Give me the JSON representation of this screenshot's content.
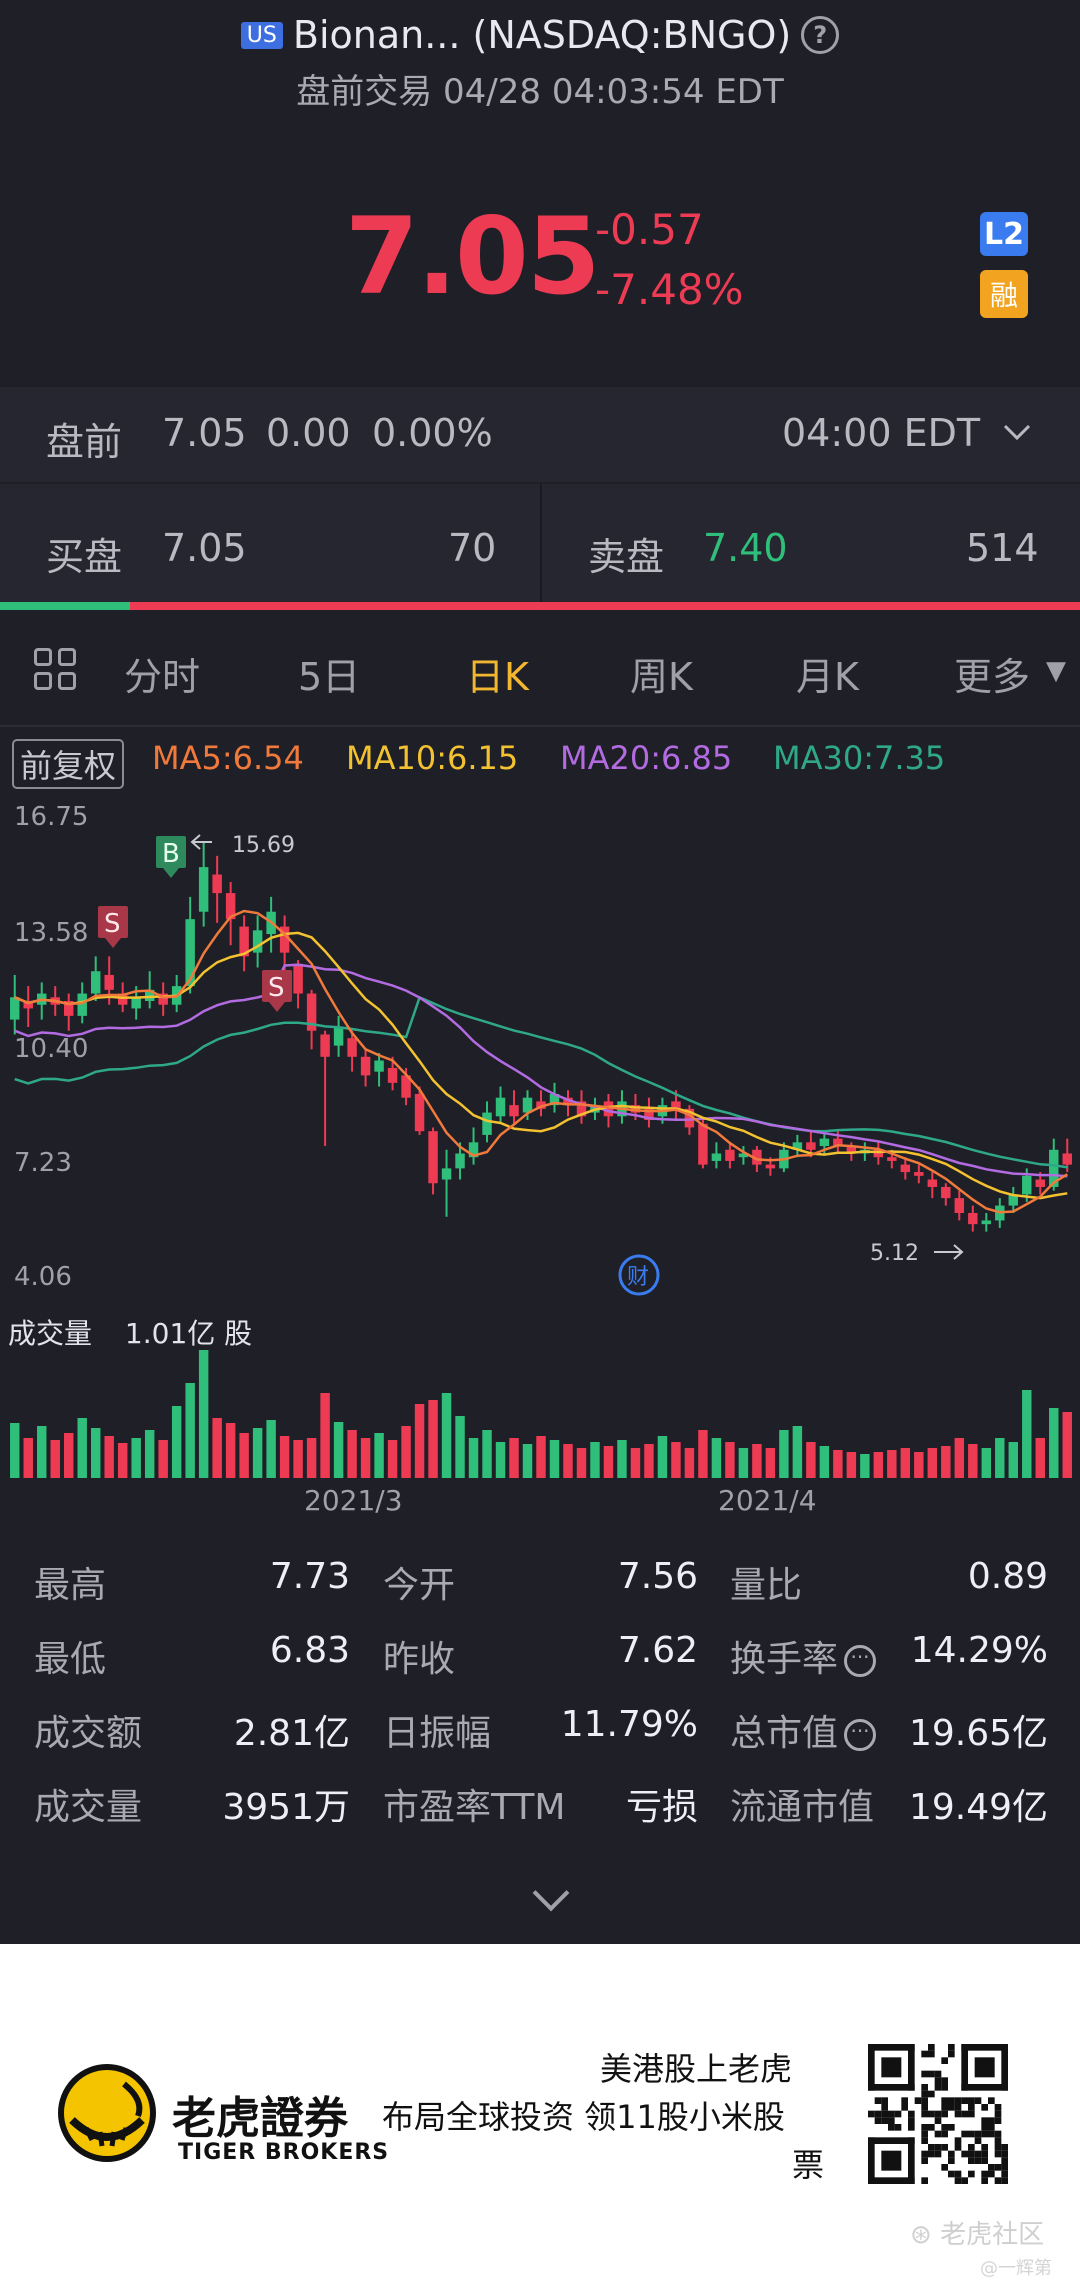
{
  "header": {
    "market_badge": "US",
    "title": "Bionan... (NASDAQ:BNGO)",
    "subtitle": "盘前交易 04/28 04:03:54 EDT",
    "price": "7.05",
    "change": "-0.57",
    "change_pct": "-7.48%",
    "l2_badge": "L2",
    "margin_badge": "融"
  },
  "premarket": {
    "label": "盘前",
    "price": "7.05",
    "change": "0.00",
    "change_pct": "0.00%",
    "time": "04:00 EDT"
  },
  "bid": {
    "label": "买盘",
    "price": "7.05",
    "size": "70"
  },
  "ask": {
    "label": "卖盘",
    "price": "7.40",
    "size": "514"
  },
  "tabs": [
    "分时",
    "5日",
    "日K",
    "周K",
    "月K",
    "更多"
  ],
  "active_tab": "日K",
  "ma": {
    "adjust": "前复权",
    "ma5": "MA5:6.54",
    "ma10": "MA10:6.15",
    "ma20": "MA20:6.85",
    "ma30": "MA30:7.35"
  },
  "chart_data": {
    "type": "candlestick",
    "y_labels": [
      "16.75",
      "13.58",
      "10.40",
      "7.23",
      "4.06"
    ],
    "ylim": [
      4.06,
      16.75
    ],
    "high_marker": "15.69",
    "low_marker": "5.12",
    "signals": [
      "B",
      "S",
      "S"
    ],
    "event_icon": "财",
    "volume_label": "成交量",
    "volume_value": "1.01亿 股",
    "x_labels": [
      "2021/3",
      "2021/4"
    ],
    "colors": {
      "up": "#2fbf7a",
      "down": "#ee3b54",
      "ma5": "#f07a3c",
      "ma10": "#f2c230",
      "ma20": "#b26be0",
      "ma30": "#2fa88a"
    }
  },
  "stats": [
    {
      "label": "最高",
      "value": "7.73"
    },
    {
      "label": "今开",
      "value": "7.56"
    },
    {
      "label": "量比",
      "value": "0.89"
    },
    {
      "label": "最低",
      "value": "6.83"
    },
    {
      "label": "昨收",
      "value": "7.62"
    },
    {
      "label": "换手率",
      "value": "14.29%"
    },
    {
      "label": "成交额",
      "value": "2.81亿"
    },
    {
      "label": "日振幅",
      "value": "11.79%"
    },
    {
      "label": "总市值",
      "value": "19.65亿"
    },
    {
      "label": "成交量",
      "value": "3951万"
    },
    {
      "label": "市盈率TTM",
      "value": "亏损"
    },
    {
      "label": "流通市值",
      "value": "19.49亿"
    }
  ],
  "footer": {
    "brand_cn": "老虎證券",
    "brand_en": "TIGER BROKERS",
    "slogan1": "美港股上老虎",
    "slogan2": "布局全球投资 领11股小米股",
    "slogan3": "票",
    "watermark1": "老虎社区",
    "watermark2": "@一辉第"
  }
}
